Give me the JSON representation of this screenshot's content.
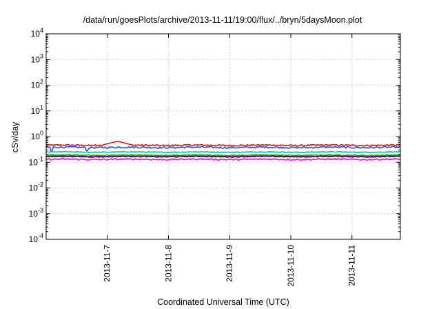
{
  "chart_data": {
    "type": "line",
    "title": "/data/run/goesPlots/archive/2013-11-11/19:00/flux/../bryn/5daysMoon.plot",
    "xlabel": "Coordinated Universal Time (UTC)",
    "ylabel": "cSv/day",
    "yscale": "log",
    "ylim": [
      0.0001,
      10000
    ],
    "y_ticks": [
      {
        "value": 0.0001,
        "base": "10",
        "exp": "-4"
      },
      {
        "value": 0.001,
        "base": "10",
        "exp": "-3"
      },
      {
        "value": 0.01,
        "base": "10",
        "exp": "-2"
      },
      {
        "value": 0.1,
        "base": "10",
        "exp": "-1"
      },
      {
        "value": 1,
        "base": "10",
        "exp": "0"
      },
      {
        "value": 10,
        "base": "10",
        "exp": "1"
      },
      {
        "value": 100,
        "base": "10",
        "exp": "2"
      },
      {
        "value": 1000,
        "base": "10",
        "exp": "3"
      },
      {
        "value": 10000,
        "base": "10",
        "exp": "4"
      }
    ],
    "xlim": [
      "2013-11-06 00:00",
      "2013-11-11 19:00"
    ],
    "x_ticks": [
      "2013-11-7",
      "2013-11-8",
      "2013-11-9",
      "2013-11-10",
      "2013-11-11"
    ],
    "grid": true,
    "legend": "none",
    "series": [
      {
        "color": "#ee1111",
        "level": 0.46,
        "noise": 0.05,
        "bump": {
          "at": "2013-11-07 04:00",
          "value": 0.65
        }
      },
      {
        "color": "#1155ee",
        "level": 0.38,
        "noise": 0.06,
        "dips": [
          {
            "at": "2013-11-06 02:00",
            "value": 0.27
          },
          {
            "at": "2013-11-06 16:00",
            "value": 0.28
          }
        ]
      },
      {
        "color": "#11bb99",
        "level": 0.25,
        "noise": 0.03
      },
      {
        "color": "#11bb11",
        "level": 0.19,
        "noise": 0.03
      },
      {
        "color": "#aa22aa",
        "level": 0.175,
        "noise": 0.03
      },
      {
        "color": "#222222",
        "level": 0.165,
        "noise": 0.03
      },
      {
        "color": "#ff00ff",
        "level": 0.13,
        "noise": 0.05
      }
    ]
  }
}
